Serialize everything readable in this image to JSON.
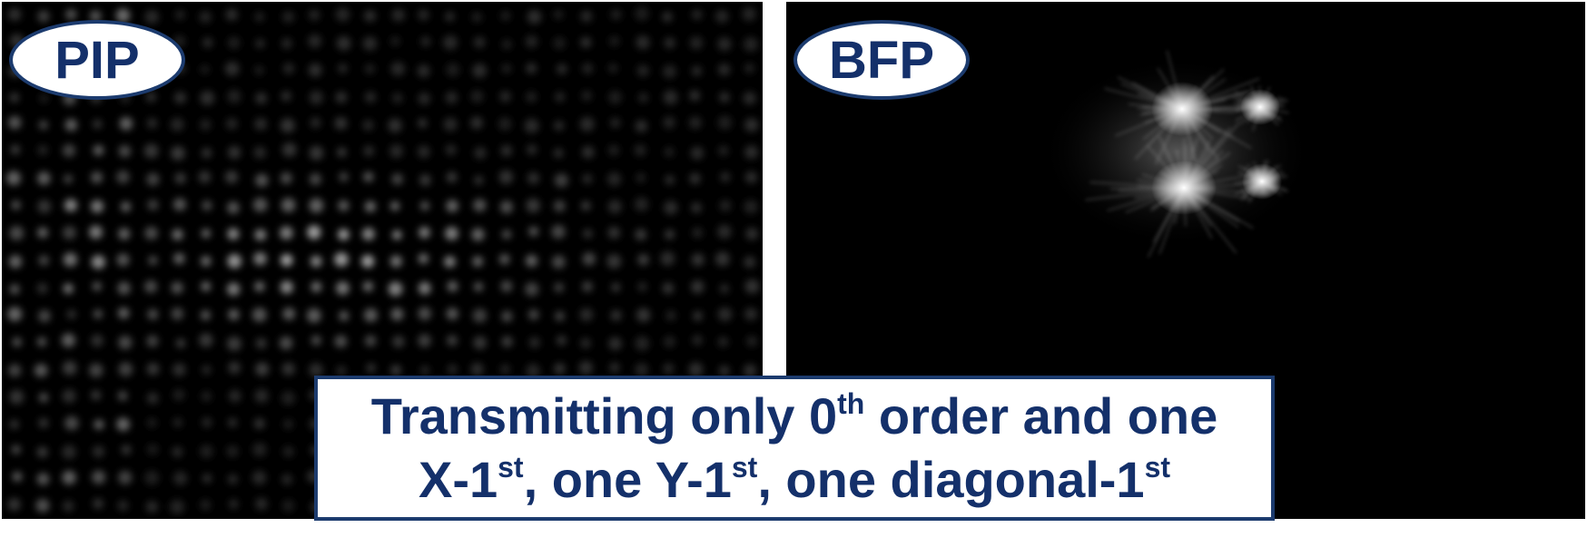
{
  "panels": {
    "pip": {
      "label": "PIP"
    },
    "bfp": {
      "label": "BFP"
    }
  },
  "caption": {
    "line1": {
      "before_sup": "Transmitting only 0",
      "sup": "th",
      "after_sup": " order and one"
    },
    "line2": {
      "part1": "X-1",
      "sup1": "st",
      "part2": ", one Y-1",
      "sup2": "st",
      "part3": ", one diagonal-1",
      "sup3": "st"
    }
  },
  "colors": {
    "label_text": "#14306a",
    "border": "#1c3b6e",
    "panel_background": "#000000"
  }
}
